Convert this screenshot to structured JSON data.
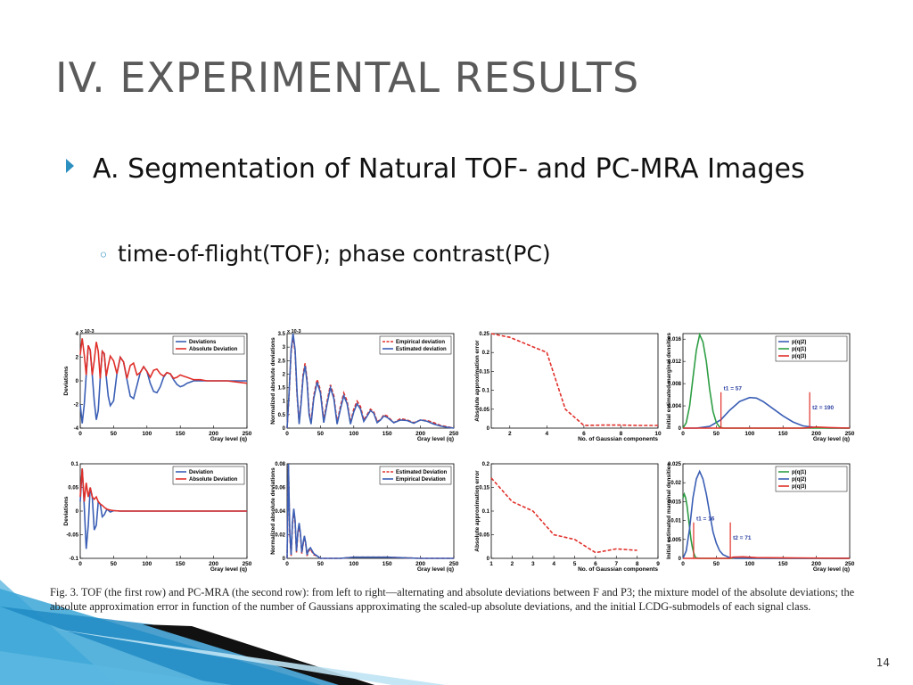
{
  "slide": {
    "title": "IV. EXPERIMENTAL RESULTS",
    "bullet": "A. Segmentation of Natural TOF- and PC-MRA Images",
    "subbullet": "time-of-flight(TOF); phase contrast(PC)",
    "page_number": "14",
    "accent_color": "#2b8fc0"
  },
  "figure": {
    "caption": "Fig. 3.    TOF (the first row) and PC-MRA (the second row): from left to right—alternating and absolute deviations between F and P3; the mixture model of the absolute deviations; the absolute approximation error in function of the number of Gaussians approximating the scaled-up absolute deviations, and the initial LCDG-submodels of each signal class."
  },
  "chart_data": [
    {
      "type": "line",
      "ylabel": "Deviations",
      "xlabel": "Gray level (q)",
      "yexp": "x 10-3",
      "xlim": [
        0,
        250
      ],
      "ylim": [
        -4,
        4
      ],
      "xticks": [
        0,
        50,
        100,
        150,
        200,
        250
      ],
      "yticks": [
        -4,
        -2,
        0,
        2,
        4
      ],
      "legend": [
        "Deviations",
        "Absolute Deviation"
      ],
      "series": [
        {
          "name": "Deviations",
          "color": "#3b5fb5",
          "x": [
            0,
            3,
            6,
            9,
            12,
            15,
            18,
            21,
            24,
            27,
            30,
            33,
            36,
            39,
            42,
            45,
            50,
            55,
            60,
            65,
            70,
            75,
            80,
            85,
            90,
            95,
            100,
            105,
            110,
            115,
            120,
            125,
            130,
            135,
            140,
            145,
            150,
            155,
            160,
            170,
            180,
            190,
            200,
            220,
            250
          ],
          "y": [
            -2,
            -3.6,
            -2,
            0.5,
            3,
            2.6,
            0.5,
            -1.7,
            -3.3,
            -2.5,
            0.2,
            2.5,
            2.3,
            0.3,
            -1.3,
            -2.1,
            -1.7,
            0.6,
            2,
            1.6,
            0.1,
            -1.3,
            -1.5,
            -0.4,
            0.7,
            1.2,
            0.8,
            -0.2,
            -0.9,
            -1,
            -0.5,
            0.3,
            0.7,
            0.6,
            0.1,
            -0.3,
            -0.5,
            -0.4,
            -0.2,
            0,
            0,
            0,
            0,
            0,
            0
          ]
        },
        {
          "name": "Absolute Deviation",
          "color": "#e0302a",
          "x": [
            0,
            3,
            6,
            9,
            12,
            15,
            18,
            21,
            24,
            27,
            30,
            33,
            36,
            39,
            42,
            45,
            50,
            55,
            60,
            65,
            70,
            75,
            80,
            85,
            90,
            95,
            100,
            105,
            110,
            115,
            120,
            125,
            130,
            135,
            140,
            145,
            150,
            155,
            160,
            170,
            180,
            190,
            200,
            220,
            250
          ],
          "y": [
            2.2,
            3.6,
            2.2,
            0.5,
            3,
            2.6,
            0.5,
            1.7,
            3.3,
            2.5,
            0.2,
            2.5,
            2.3,
            0.4,
            1.3,
            2.1,
            1.7,
            0.6,
            2,
            1.6,
            0.2,
            1.3,
            1.5,
            0.5,
            0.7,
            1.2,
            0.8,
            0.3,
            0.9,
            1,
            0.6,
            0.4,
            0.7,
            0.6,
            0.2,
            0.3,
            0.5,
            0.4,
            0.3,
            0.1,
            0.1,
            0,
            0,
            0,
            -0.2
          ]
        }
      ]
    },
    {
      "type": "line",
      "ylabel": "Normalized absolute deviations",
      "xlabel": "Gray level (q)",
      "yexp": "x 10-3",
      "xlim": [
        0,
        250
      ],
      "ylim": [
        0,
        3.5
      ],
      "xticks": [
        0,
        50,
        100,
        150,
        200,
        250
      ],
      "yticks": [
        0,
        0.5,
        1,
        1.5,
        2,
        2.5,
        3,
        3.5
      ],
      "legend": [
        "Empirical deviation",
        "Estimated deviation"
      ],
      "series": [
        {
          "name": "Empirical deviation",
          "color": "#e0302a",
          "dashed": true,
          "x": [
            0,
            3,
            6,
            9,
            12,
            15,
            18,
            21,
            24,
            27,
            30,
            33,
            36,
            40,
            45,
            50,
            55,
            60,
            65,
            70,
            75,
            80,
            85,
            90,
            95,
            100,
            105,
            110,
            115,
            120,
            125,
            130,
            135,
            140,
            145,
            150,
            160,
            170,
            180,
            190,
            200,
            210,
            220,
            230,
            240,
            250
          ],
          "y": [
            0,
            1.2,
            2.8,
            3.4,
            2.8,
            1.2,
            0.2,
            1,
            2,
            2.4,
            1.8,
            0.6,
            0.2,
            1.2,
            1.8,
            1.4,
            0.3,
            1,
            1.6,
            1.2,
            0.2,
            0.8,
            1.3,
            1,
            0.2,
            0.7,
            1,
            0.8,
            0.3,
            0.5,
            0.7,
            0.6,
            0.25,
            0.3,
            0.5,
            0.45,
            0.2,
            0.35,
            0.3,
            0.2,
            0.3,
            0.28,
            0.2,
            0.1,
            0.05,
            0
          ]
        },
        {
          "name": "Estimated deviation",
          "color": "#3b5fb5",
          "x": [
            0,
            3,
            6,
            9,
            12,
            15,
            18,
            21,
            24,
            27,
            30,
            33,
            36,
            40,
            45,
            50,
            55,
            60,
            65,
            70,
            75,
            80,
            85,
            90,
            95,
            100,
            105,
            110,
            115,
            120,
            125,
            130,
            135,
            140,
            145,
            150,
            160,
            170,
            180,
            190,
            200,
            210,
            220,
            230,
            240,
            250
          ],
          "y": [
            0,
            1.3,
            2.9,
            3.5,
            2.9,
            1.3,
            0.15,
            0.9,
            1.9,
            2.3,
            1.7,
            0.5,
            0.15,
            1.1,
            1.7,
            1.3,
            0.2,
            0.9,
            1.5,
            1.1,
            0.15,
            0.7,
            1.2,
            0.9,
            0.15,
            0.6,
            0.9,
            0.7,
            0.25,
            0.45,
            0.65,
            0.55,
            0.2,
            0.3,
            0.45,
            0.4,
            0.2,
            0.3,
            0.28,
            0.18,
            0.3,
            0.25,
            0.15,
            0.08,
            0.03,
            0
          ]
        }
      ]
    },
    {
      "type": "line",
      "ylabel": "Absolute approximation error",
      "xlabel": "No. of Gaussian components",
      "xlim": [
        1,
        10
      ],
      "ylim": [
        0,
        0.25
      ],
      "xticks": [
        2,
        4,
        6,
        8,
        10
      ],
      "yticks": [
        0,
        0.05,
        0.1,
        0.15,
        0.2,
        0.25
      ],
      "series": [
        {
          "color": "#e0302a",
          "dashed": true,
          "x": [
            1,
            2,
            3,
            4,
            5,
            6,
            7,
            8,
            9,
            10
          ],
          "y": [
            0.25,
            0.24,
            0.22,
            0.2,
            0.05,
            0.007,
            0.008,
            0.008,
            0.007,
            0.007
          ]
        }
      ]
    },
    {
      "type": "line",
      "ylabel": "Initial estimated marginal densities",
      "xlabel": "Gray level (q)",
      "xlim": [
        0,
        250
      ],
      "ylim": [
        0,
        0.017
      ],
      "xticks": [
        0,
        50,
        100,
        150,
        200,
        250
      ],
      "yticks": [
        0,
        0.004,
        0.008,
        0.012,
        0.016
      ],
      "legend": [
        "p(q|2)",
        "p(q|1)",
        "p(q|3)"
      ],
      "annotations": [
        {
          "text": "t1 = 57",
          "x": 57
        },
        {
          "text": "t2 = 190",
          "x": 190
        }
      ],
      "series": [
        {
          "name": "p(q|2)",
          "color": "#3b5fb5",
          "x": [
            0,
            20,
            40,
            57,
            70,
            85,
            100,
            110,
            120,
            135,
            150,
            165,
            180,
            200,
            220,
            250
          ],
          "y": [
            0,
            0,
            0.0003,
            0.0015,
            0.0032,
            0.0048,
            0.0055,
            0.0054,
            0.0048,
            0.0035,
            0.0022,
            0.0011,
            0.0004,
            0.0001,
            0,
            0
          ]
        },
        {
          "name": "p(q|1)",
          "color": "#2e9e44",
          "x": [
            0,
            5,
            10,
            15,
            20,
            25,
            30,
            35,
            40,
            45,
            50,
            55,
            60,
            65,
            70,
            250
          ],
          "y": [
            0,
            0.001,
            0.004,
            0.009,
            0.014,
            0.0168,
            0.0155,
            0.012,
            0.007,
            0.003,
            0.001,
            0.0002,
            0,
            0,
            0,
            0
          ]
        },
        {
          "name": "p(q|3)",
          "color": "#e0302a",
          "x": [
            0,
            180,
            190,
            200,
            220,
            250
          ],
          "y": [
            0,
            0,
            0.0001,
            0.0002,
            0.0001,
            0
          ]
        }
      ]
    },
    {
      "type": "line",
      "ylabel": "Deviations",
      "xlabel": "Gray level (q)",
      "xlim": [
        0,
        250
      ],
      "ylim": [
        -0.1,
        0.1
      ],
      "xticks": [
        0,
        50,
        100,
        150,
        200,
        250
      ],
      "yticks": [
        -0.1,
        -0.05,
        0,
        0.05,
        0.1
      ],
      "legend": [
        "Deviation",
        "Absolute Deviation"
      ],
      "series": [
        {
          "name": "Deviation",
          "color": "#3b5fb5",
          "x": [
            0,
            3,
            6,
            9,
            12,
            15,
            18,
            21,
            24,
            27,
            30,
            33,
            36,
            40,
            45,
            50,
            60,
            70,
            80,
            100,
            150,
            200,
            250
          ],
          "y": [
            0.02,
            0.09,
            0.01,
            -0.08,
            -0.03,
            0.05,
            0.03,
            -0.04,
            -0.03,
            0.02,
            0.015,
            -0.012,
            -0.008,
            0.004,
            -0.002,
            0.001,
            0,
            0,
            0,
            0,
            0,
            0,
            0
          ]
        },
        {
          "name": "Absolute Deviation",
          "color": "#e0302a",
          "x": [
            0,
            3,
            6,
            9,
            12,
            15,
            18,
            21,
            24,
            27,
            30,
            33,
            36,
            40,
            45,
            50,
            60,
            70,
            80,
            100,
            150,
            200,
            250
          ],
          "y": [
            0.03,
            0.09,
            0.02,
            0.06,
            0.03,
            0.05,
            0.03,
            0.025,
            0.03,
            0.02,
            0.015,
            0.012,
            0.008,
            0.004,
            0.002,
            0.001,
            0,
            0,
            0,
            0,
            0,
            0,
            0
          ]
        }
      ]
    },
    {
      "type": "line",
      "ylabel": "Normalized absolute deviations",
      "xlabel": "Gray level (q)",
      "xlim": [
        0,
        250
      ],
      "ylim": [
        0,
        0.08
      ],
      "xticks": [
        0,
        50,
        100,
        150,
        200,
        250
      ],
      "yticks": [
        0,
        0.02,
        0.04,
        0.06,
        0.08
      ],
      "legend": [
        "Estimated Deviation",
        "Empirical Deviation"
      ],
      "series": [
        {
          "name": "Estimated Deviation",
          "color": "#e0302a",
          "dashed": true,
          "x": [
            0,
            2,
            4,
            6,
            8,
            10,
            12,
            14,
            16,
            18,
            20,
            22,
            24,
            26,
            28,
            30,
            32,
            35,
            40,
            45,
            50,
            60,
            80,
            100,
            150,
            200,
            250
          ],
          "y": [
            0,
            0.078,
            0.02,
            0.002,
            0.028,
            0.04,
            0.03,
            0.005,
            0.02,
            0.028,
            0.02,
            0.004,
            0.012,
            0.018,
            0.012,
            0.002,
            0.006,
            0.008,
            0.003,
            0.002,
            0,
            0,
            0,
            0.001,
            0.001,
            0,
            0
          ]
        },
        {
          "name": "Empirical Deviation",
          "color": "#3b5fb5",
          "x": [
            0,
            2,
            4,
            6,
            8,
            10,
            12,
            14,
            16,
            18,
            20,
            22,
            24,
            26,
            28,
            30,
            32,
            35,
            40,
            45,
            50,
            60,
            80,
            100,
            150,
            200,
            250
          ],
          "y": [
            0,
            0.08,
            0.022,
            0.003,
            0.03,
            0.042,
            0.032,
            0.006,
            0.022,
            0.03,
            0.021,
            0.005,
            0.013,
            0.019,
            0.013,
            0.003,
            0.007,
            0.009,
            0.004,
            0.002,
            0,
            0,
            0,
            0.001,
            0.001,
            0,
            0
          ]
        }
      ]
    },
    {
      "type": "line",
      "ylabel": "Absolute approximation error",
      "xlabel": "No. of Gaussian components",
      "xlim": [
        1,
        9
      ],
      "ylim": [
        0,
        0.2
      ],
      "xticks": [
        1,
        2,
        3,
        4,
        5,
        6,
        7,
        8,
        9
      ],
      "yticks": [
        0,
        0.05,
        0.1,
        0.15,
        0.2
      ],
      "series": [
        {
          "color": "#e0302a",
          "dashed": true,
          "x": [
            1,
            2,
            3,
            4,
            5,
            6,
            7,
            8
          ],
          "y": [
            0.17,
            0.12,
            0.1,
            0.05,
            0.04,
            0.012,
            0.02,
            0.017
          ]
        }
      ]
    },
    {
      "type": "line",
      "ylabel": "Initial estimated marginal densities",
      "xlabel": "Gray level (q)",
      "xlim": [
        0,
        250
      ],
      "ylim": [
        0,
        0.025
      ],
      "xticks": [
        0,
        50,
        100,
        150,
        200,
        250
      ],
      "yticks": [
        0,
        0.005,
        0.01,
        0.015,
        0.02,
        0.025
      ],
      "legend": [
        "p(q|1)",
        "p(q|2)",
        "p(q|3)"
      ],
      "annotations": [
        {
          "text": "t1 = 16",
          "x": 16
        },
        {
          "text": "t2 = 71",
          "x": 71
        }
      ],
      "series": [
        {
          "name": "p(q|1)",
          "color": "#2e9e44",
          "x": [
            0,
            2,
            4,
            6,
            8,
            10,
            12,
            14,
            16,
            18,
            20,
            25,
            250
          ],
          "y": [
            0.016,
            0.017,
            0.016,
            0.014,
            0.011,
            0.008,
            0.005,
            0.003,
            0.0015,
            0.0005,
            0.0001,
            0,
            0
          ]
        },
        {
          "name": "p(q|2)",
          "color": "#3b5fb5",
          "x": [
            0,
            5,
            10,
            15,
            20,
            25,
            30,
            35,
            40,
            45,
            50,
            55,
            60,
            70,
            80,
            250
          ],
          "y": [
            0,
            0.002,
            0.008,
            0.016,
            0.021,
            0.023,
            0.021,
            0.017,
            0.012,
            0.007,
            0.004,
            0.002,
            0.001,
            0.0002,
            0,
            0
          ]
        },
        {
          "name": "p(q|3)",
          "color": "#e0302a",
          "x": [
            0,
            70,
            75,
            90,
            110,
            250
          ],
          "y": [
            0,
            0,
            0.0003,
            0.0004,
            0.0002,
            0
          ]
        }
      ]
    }
  ]
}
